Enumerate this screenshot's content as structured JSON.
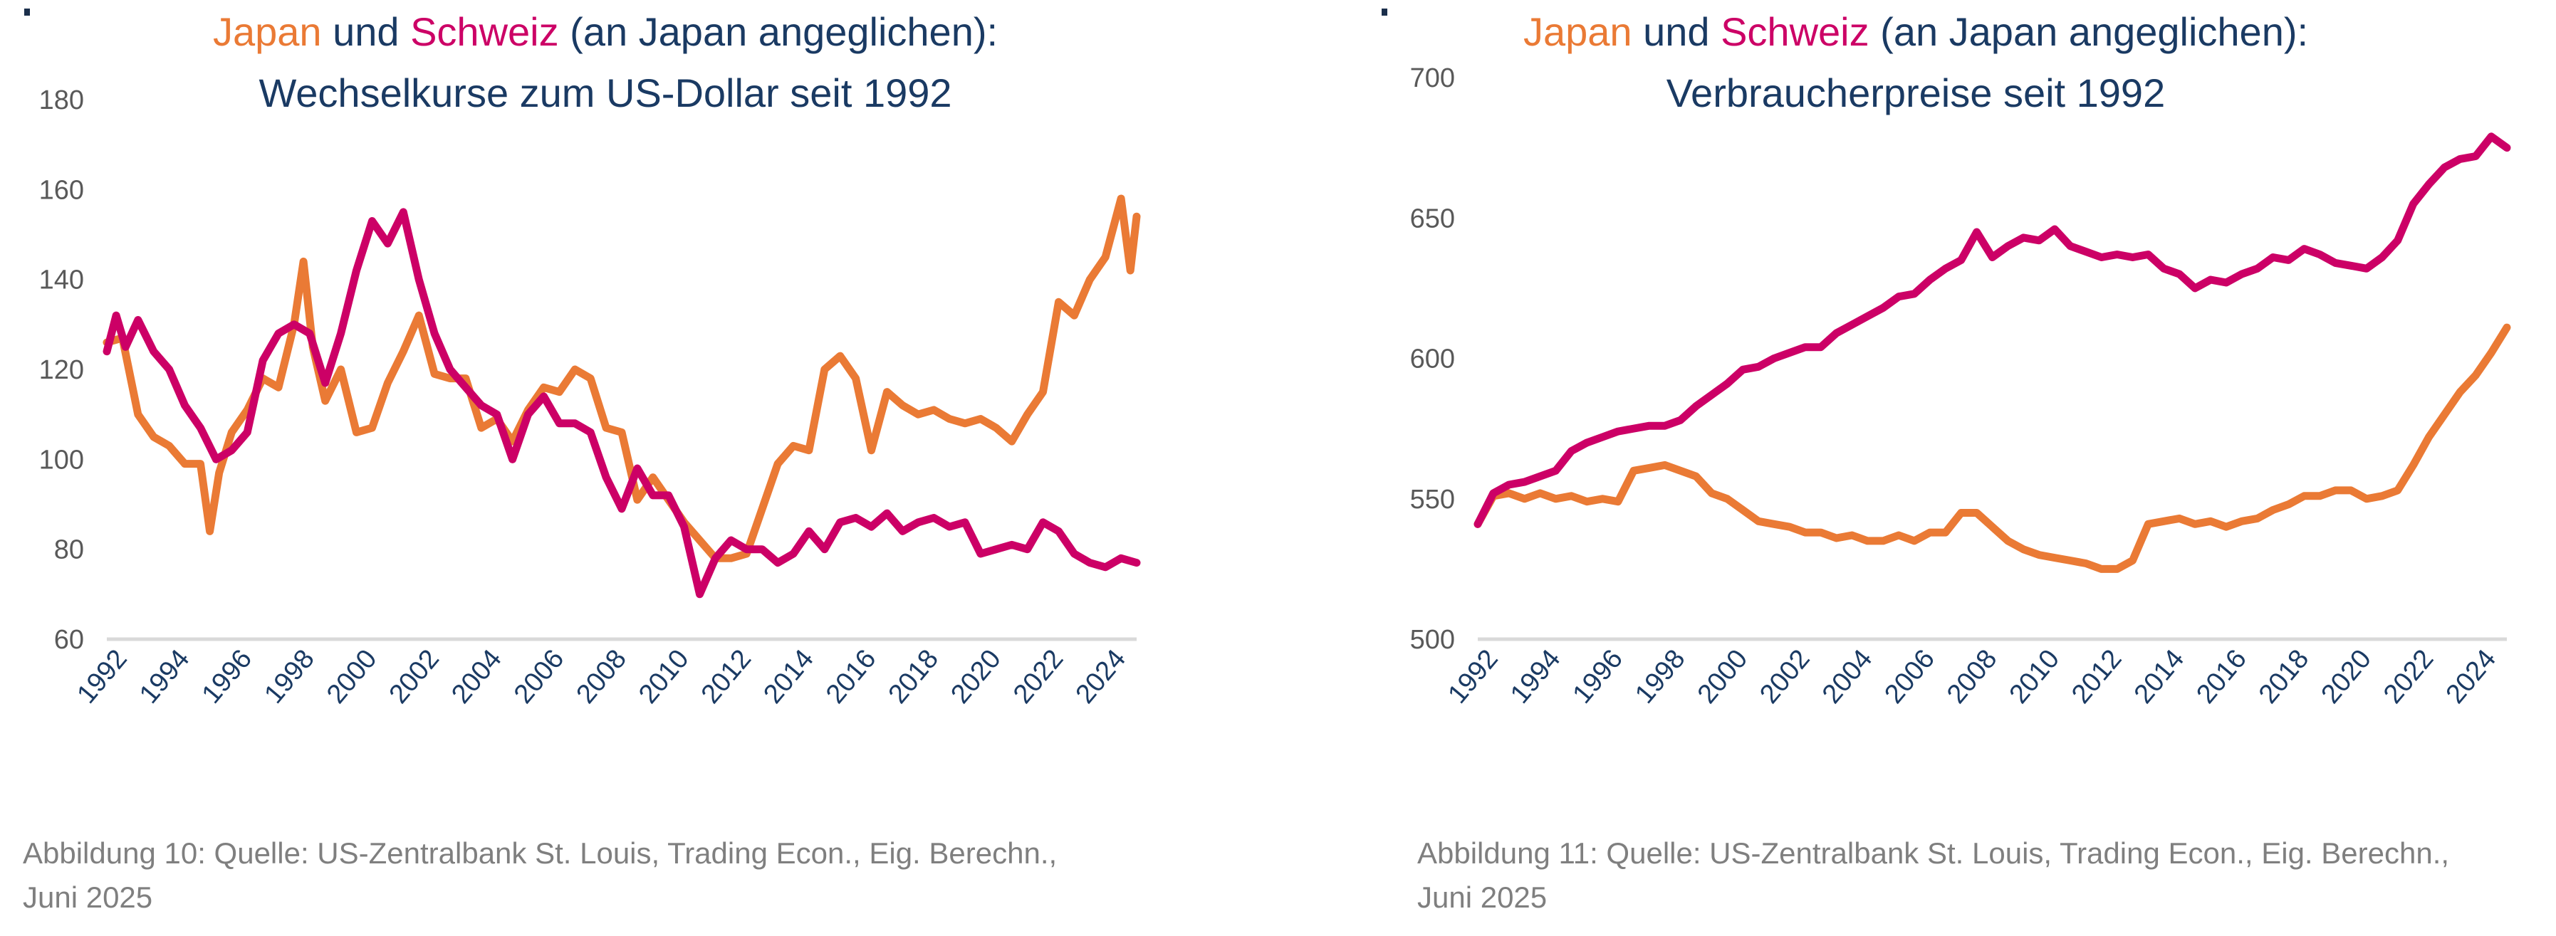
{
  "colors": {
    "japan": "#ea7a35",
    "schweiz": "#cc0066",
    "title": "#1a3a63",
    "axis": "#d9d9d9",
    "caption": "#7f7f7f"
  },
  "chart_data": [
    {
      "type": "line",
      "title_parts": {
        "japan": "Japan",
        "und": " und ",
        "schweiz": "Schweiz",
        "rest": " (an Japan angeglichen):"
      },
      "subtitle": "Wechselkurse  zum US-Dollar seit 1992",
      "xlabel": "",
      "ylabel": "",
      "ylim": [
        60,
        180
      ],
      "yticks": [
        60,
        80,
        100,
        120,
        140,
        160,
        180
      ],
      "xlim": [
        1992,
        2025
      ],
      "xticks": [
        "1992",
        "1994",
        "1996",
        "1998",
        "2000",
        "2002",
        "2004",
        "2006",
        "2008",
        "2010",
        "2012",
        "2014",
        "2016",
        "2018",
        "2020",
        "2022",
        "2024"
      ],
      "grid": false,
      "legend": "in-title",
      "caption": "Abbildung 10: Quelle: US-Zentralbank St. Louis, Trading Econ., Eig. Berechn., Juni 2025",
      "series": [
        {
          "name": "Japan",
          "color_key": "japan",
          "x": [
            1992,
            1992.5,
            1993,
            1993.5,
            1994,
            1994.5,
            1995,
            1995.3,
            1995.6,
            1996,
            1996.5,
            1997,
            1997.5,
            1998,
            1998.3,
            1998.6,
            1999,
            1999.5,
            2000,
            2000.5,
            2001,
            2001.5,
            2002,
            2002.5,
            2003,
            2003.5,
            2004,
            2004.5,
            2005,
            2005.5,
            2006,
            2006.5,
            2007,
            2007.5,
            2008,
            2008.5,
            2009,
            2009.5,
            2010,
            2010.5,
            2011,
            2011.5,
            2012,
            2012.5,
            2013,
            2013.5,
            2014,
            2014.5,
            2015,
            2015.5,
            2016,
            2016.5,
            2017,
            2017.5,
            2018,
            2018.5,
            2019,
            2019.5,
            2020,
            2020.5,
            2021,
            2021.5,
            2022,
            2022.5,
            2023,
            2023.5,
            2024,
            2024.5,
            2024.8,
            2025
          ],
          "values": [
            126,
            127,
            110,
            105,
            103,
            99,
            99,
            84,
            97,
            106,
            111,
            118,
            116,
            130,
            144,
            125,
            113,
            120,
            106,
            107,
            117,
            124,
            132,
            119,
            118,
            118,
            107,
            109,
            104,
            111,
            116,
            115,
            120,
            118,
            107,
            106,
            91,
            96,
            91,
            86,
            82,
            78,
            78,
            79,
            89,
            99,
            103,
            102,
            120,
            123,
            118,
            102,
            115,
            112,
            110,
            111,
            109,
            108,
            109,
            107,
            104,
            110,
            115,
            135,
            132,
            140,
            145,
            158,
            142,
            154
          ]
        },
        {
          "name": "Schweiz",
          "color_key": "schweiz",
          "x": [
            1992,
            1992.3,
            1992.6,
            1993,
            1993.5,
            1994,
            1994.5,
            1995,
            1995.5,
            1996,
            1996.5,
            1997,
            1997.5,
            1998,
            1998.5,
            1999,
            1999.5,
            2000,
            2000.5,
            2001,
            2001.5,
            2002,
            2002.5,
            2003,
            2003.5,
            2004,
            2004.5,
            2005,
            2005.5,
            2006,
            2006.5,
            2007,
            2007.5,
            2008,
            2008.5,
            2009,
            2009.5,
            2010,
            2010.5,
            2011,
            2011.5,
            2012,
            2012.5,
            2013,
            2013.5,
            2014,
            2014.5,
            2015,
            2015.5,
            2016,
            2016.5,
            2017,
            2017.5,
            2018,
            2018.5,
            2019,
            2019.5,
            2020,
            2020.5,
            2021,
            2021.5,
            2022,
            2022.5,
            2023,
            2023.5,
            2024,
            2024.5,
            2025
          ],
          "values": [
            124,
            132,
            125,
            131,
            124,
            120,
            112,
            107,
            100,
            102,
            106,
            122,
            128,
            130,
            128,
            117,
            128,
            142,
            153,
            148,
            155,
            140,
            128,
            120,
            116,
            112,
            110,
            100,
            110,
            114,
            108,
            108,
            106,
            96,
            89,
            98,
            92,
            92,
            85,
            70,
            78,
            82,
            80,
            80,
            77,
            79,
            84,
            80,
            86,
            87,
            85,
            88,
            84,
            86,
            87,
            85,
            86,
            79,
            80,
            81,
            80,
            86,
            84,
            79,
            77,
            76,
            78,
            77
          ]
        }
      ]
    },
    {
      "type": "line",
      "title_parts": {
        "japan": "Japan",
        "und": " und ",
        "schweiz": "Schweiz",
        "rest": " (an Japan angeglichen):"
      },
      "subtitle": "Verbraucherpreise seit 1992",
      "xlabel": "",
      "ylabel": "",
      "ylim": [
        500,
        700
      ],
      "yticks": [
        500,
        550,
        600,
        650,
        700
      ],
      "xlim": [
        1992,
        2025
      ],
      "xticks": [
        "1992",
        "1994",
        "1996",
        "1998",
        "2000",
        "2002",
        "2004",
        "2006",
        "2008",
        "2010",
        "2012",
        "2014",
        "2016",
        "2018",
        "2020",
        "2022",
        "2024"
      ],
      "grid": false,
      "legend": "in-title",
      "caption": "Abbildung 11: Quelle: US-Zentralbank St. Louis, Trading Econ., Eig. Berechn., Juni 2025",
      "series": [
        {
          "name": "Japan",
          "color_key": "japan",
          "x": [
            1992,
            1992.5,
            1993,
            1993.5,
            1994,
            1994.5,
            1995,
            1995.5,
            1996,
            1996.5,
            1997,
            1997.5,
            1998,
            1998.5,
            1999,
            1999.5,
            2000,
            2000.5,
            2001,
            2001.5,
            2002,
            2002.5,
            2003,
            2003.5,
            2004,
            2004.5,
            2005,
            2005.5,
            2006,
            2006.5,
            2007,
            2007.5,
            2008,
            2008.5,
            2009,
            2009.5,
            2010,
            2010.5,
            2011,
            2011.5,
            2012,
            2012.5,
            2013,
            2013.5,
            2014,
            2014.5,
            2015,
            2015.5,
            2016,
            2016.5,
            2017,
            2017.5,
            2018,
            2018.5,
            2019,
            2019.5,
            2020,
            2020.5,
            2021,
            2021.5,
            2022,
            2022.5,
            2023,
            2023.5,
            2024,
            2024.5,
            2025
          ],
          "values": [
            541,
            551,
            552,
            550,
            552,
            550,
            551,
            549,
            550,
            549,
            560,
            561,
            562,
            560,
            558,
            552,
            550,
            546,
            542,
            541,
            540,
            538,
            538,
            536,
            537,
            535,
            535,
            537,
            535,
            538,
            538,
            545,
            545,
            540,
            535,
            532,
            530,
            529,
            528,
            527,
            525,
            525,
            528,
            541,
            542,
            543,
            541,
            542,
            540,
            542,
            543,
            546,
            548,
            551,
            551,
            553,
            553,
            550,
            551,
            553,
            562,
            572,
            580,
            588,
            594,
            602,
            611
          ]
        },
        {
          "name": "Schweiz",
          "color_key": "schweiz",
          "x": [
            1992,
            1992.5,
            1993,
            1993.5,
            1994,
            1994.5,
            1995,
            1995.5,
            1996,
            1996.5,
            1997,
            1997.5,
            1998,
            1998.5,
            1999,
            1999.5,
            2000,
            2000.5,
            2001,
            2001.5,
            2002,
            2002.5,
            2003,
            2003.5,
            2004,
            2004.5,
            2005,
            2005.5,
            2006,
            2006.5,
            2007,
            2007.5,
            2008,
            2008.5,
            2009,
            2009.5,
            2010,
            2010.5,
            2011,
            2011.5,
            2012,
            2012.5,
            2013,
            2013.5,
            2014,
            2014.5,
            2015,
            2015.5,
            2016,
            2016.5,
            2017,
            2017.5,
            2018,
            2018.5,
            2019,
            2019.5,
            2020,
            2020.5,
            2021,
            2021.5,
            2022,
            2022.5,
            2023,
            2023.5,
            2024,
            2024.5,
            2025
          ],
          "values": [
            541,
            552,
            555,
            556,
            558,
            560,
            567,
            570,
            572,
            574,
            575,
            576,
            576,
            578,
            583,
            587,
            591,
            596,
            597,
            600,
            602,
            604,
            604,
            609,
            612,
            615,
            618,
            622,
            623,
            628,
            632,
            635,
            645,
            636,
            640,
            643,
            642,
            646,
            640,
            638,
            636,
            637,
            636,
            637,
            632,
            630,
            625,
            628,
            627,
            630,
            632,
            636,
            635,
            639,
            637,
            634,
            633,
            632,
            636,
            642,
            655,
            662,
            668,
            671,
            672,
            679,
            675
          ]
        }
      ]
    }
  ],
  "captions": {
    "left_line1": "Abbildung 10: Quelle: US-Zentralbank St. Louis, Trading Econ., Eig. Berechn.,",
    "left_line2": "Juni 2025",
    "right_line1": "Abbildung 11: Quelle: US-Zentralbank St. Louis, Trading Econ., Eig. Berechn.,",
    "right_line2": "Juni 2025"
  },
  "titles": {
    "left": {
      "japan": "Japan",
      "und": " und ",
      "schweiz": "Schweiz",
      "rest": " (an Japan angeglichen):",
      "subtitle": "Wechselkurse  zum US-Dollar seit 1992"
    },
    "right": {
      "japan": "Japan",
      "und": " und ",
      "schweiz": "Schweiz",
      "rest": " (an Japan angeglichen):",
      "subtitle": "Verbraucherpreise seit 1992"
    }
  }
}
